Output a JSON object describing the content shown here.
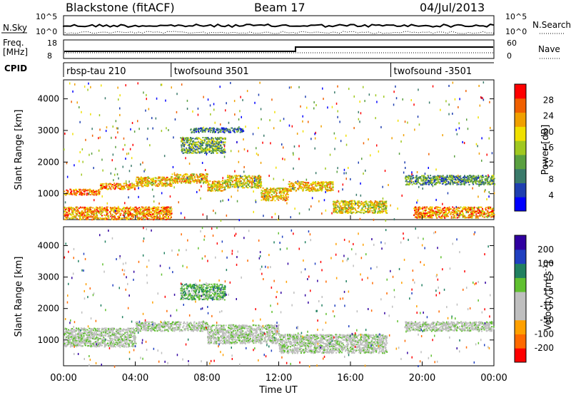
{
  "header": {
    "radar": "Blackstone (fitACF)",
    "beam": "Beam 17",
    "date": "04/Jul/2013"
  },
  "strip_labels": {
    "nsky": "N.Sky",
    "nsky_top": "10^5",
    "nsky_bottom": "10^0",
    "nsearch": "N.Search",
    "nsearch_top": "10^5",
    "nsearch_bottom": "10^0",
    "freq": "Freq.",
    "freq_unit": "[MHz]",
    "freq_top": "18",
    "freq_bottom": "8",
    "nave": "Nave",
    "nave_top": "60",
    "nave_bottom": "0",
    "cpid": "CPID"
  },
  "cpid_segments": [
    {
      "start_hour": 0,
      "label": "rbsp-tau 210"
    },
    {
      "start_hour": 6,
      "label": "twofsound 3501"
    },
    {
      "start_hour": 18.25,
      "label": "twofsound -3501"
    }
  ],
  "chart_data": [
    {
      "type": "heatmap",
      "title": "Power",
      "xlabel": "Time UT",
      "ylabel": "Slant Range [km]",
      "x_ticks": [
        "00:00",
        "04:00",
        "08:00",
        "12:00",
        "16:00",
        "20:00",
        "00:00"
      ],
      "y_ticks": [
        "1000",
        "2000",
        "3000",
        "4000"
      ],
      "xlim_hours": [
        0,
        24
      ],
      "ylim_km": [
        180,
        4600
      ],
      "colorbar": {
        "label": "Power [dB]",
        "ticks": [
          "28",
          "24",
          "20",
          "16",
          "12",
          "8",
          "4"
        ],
        "range_db": [
          0,
          30
        ],
        "colors": [
          "#0000ff",
          "#1f3fb0",
          "#3a7a6a",
          "#5aa040",
          "#a0c820",
          "#f0e000",
          "#f0a000",
          "#f06000",
          "#ff0000"
        ]
      },
      "echo_bands": [
        {
          "start_hour": 0.0,
          "end_hour": 2.0,
          "range_km": [
            980,
            1160
          ],
          "power_db": 24
        },
        {
          "start_hour": 2.0,
          "end_hour": 4.0,
          "range_km": [
            1150,
            1350
          ],
          "power_db": 22
        },
        {
          "start_hour": 4.0,
          "end_hour": 6.0,
          "range_km": [
            1250,
            1550
          ],
          "power_db": 20
        },
        {
          "start_hour": 6.0,
          "end_hour": 8.0,
          "range_km": [
            1350,
            1650
          ],
          "power_db": 20
        },
        {
          "start_hour": 8.0,
          "end_hour": 9.0,
          "range_km": [
            1100,
            1450
          ],
          "power_db": 18
        },
        {
          "start_hour": 9.0,
          "end_hour": 11.0,
          "range_km": [
            1200,
            1600
          ],
          "power_db": 18
        },
        {
          "start_hour": 11.0,
          "end_hour": 12.5,
          "range_km": [
            800,
            1200
          ],
          "power_db": 20
        },
        {
          "start_hour": 12.5,
          "end_hour": 15.0,
          "range_km": [
            1100,
            1400
          ],
          "power_db": 20
        },
        {
          "start_hour": 15.0,
          "end_hour": 18.0,
          "range_km": [
            400,
            800
          ],
          "power_db": 18
        },
        {
          "start_hour": 19.0,
          "end_hour": 24.0,
          "range_km": [
            1300,
            1600
          ],
          "power_db": 10
        },
        {
          "start_hour": 0.0,
          "end_hour": 6.0,
          "range_km": [
            200,
            600
          ],
          "power_db": 22
        },
        {
          "start_hour": 19.5,
          "end_hour": 24.0,
          "range_km": [
            250,
            600
          ],
          "power_db": 22
        },
        {
          "start_hour": 6.5,
          "end_hour": 9.0,
          "range_km": [
            2300,
            2800
          ],
          "power_db": 12
        },
        {
          "start_hour": 7.0,
          "end_hour": 10.0,
          "range_km": [
            2950,
            3100
          ],
          "power_db": 8
        }
      ]
    },
    {
      "type": "heatmap",
      "title": "Velocity",
      "xlabel": "Time UT",
      "ylabel": "Slant Range [km]",
      "x_ticks": [
        "00:00",
        "04:00",
        "08:00",
        "12:00",
        "16:00",
        "20:00",
        "00:00"
      ],
      "y_ticks": [
        "1000",
        "2000",
        "3000",
        "4000"
      ],
      "xlim_hours": [
        0,
        24
      ],
      "ylim_km": [
        180,
        4600
      ],
      "colorbar": {
        "label": "Velocity [m s^-1]",
        "ticks": [
          "200",
          "100",
          "50",
          "15",
          "-15",
          "-50",
          "-100",
          "-200"
        ],
        "range_ms": [
          -250,
          250
        ],
        "colors": [
          "#ff0000",
          "#ff6a00",
          "#ffa000",
          "#bfbfbf",
          "#bfbfbf",
          "#60c030",
          "#208060",
          "#2040c0",
          "#3000a0"
        ]
      },
      "echo_bands": [
        {
          "start_hour": 0.0,
          "end_hour": 4.0,
          "range_km": [
            800,
            1400
          ],
          "velocity_ms": 0
        },
        {
          "start_hour": 4.0,
          "end_hour": 8.0,
          "range_km": [
            1300,
            1600
          ],
          "velocity_ms": 0
        },
        {
          "start_hour": 8.0,
          "end_hour": 12.0,
          "range_km": [
            900,
            1500
          ],
          "velocity_ms": 0
        },
        {
          "start_hour": 12.0,
          "end_hour": 18.0,
          "range_km": [
            600,
            1200
          ],
          "velocity_ms": 0
        },
        {
          "start_hour": 19.0,
          "end_hour": 24.0,
          "range_km": [
            1300,
            1600
          ],
          "velocity_ms": 0
        },
        {
          "start_hour": 6.5,
          "end_hour": 9.0,
          "range_km": [
            2300,
            2800
          ],
          "velocity_ms": 60
        }
      ]
    }
  ]
}
